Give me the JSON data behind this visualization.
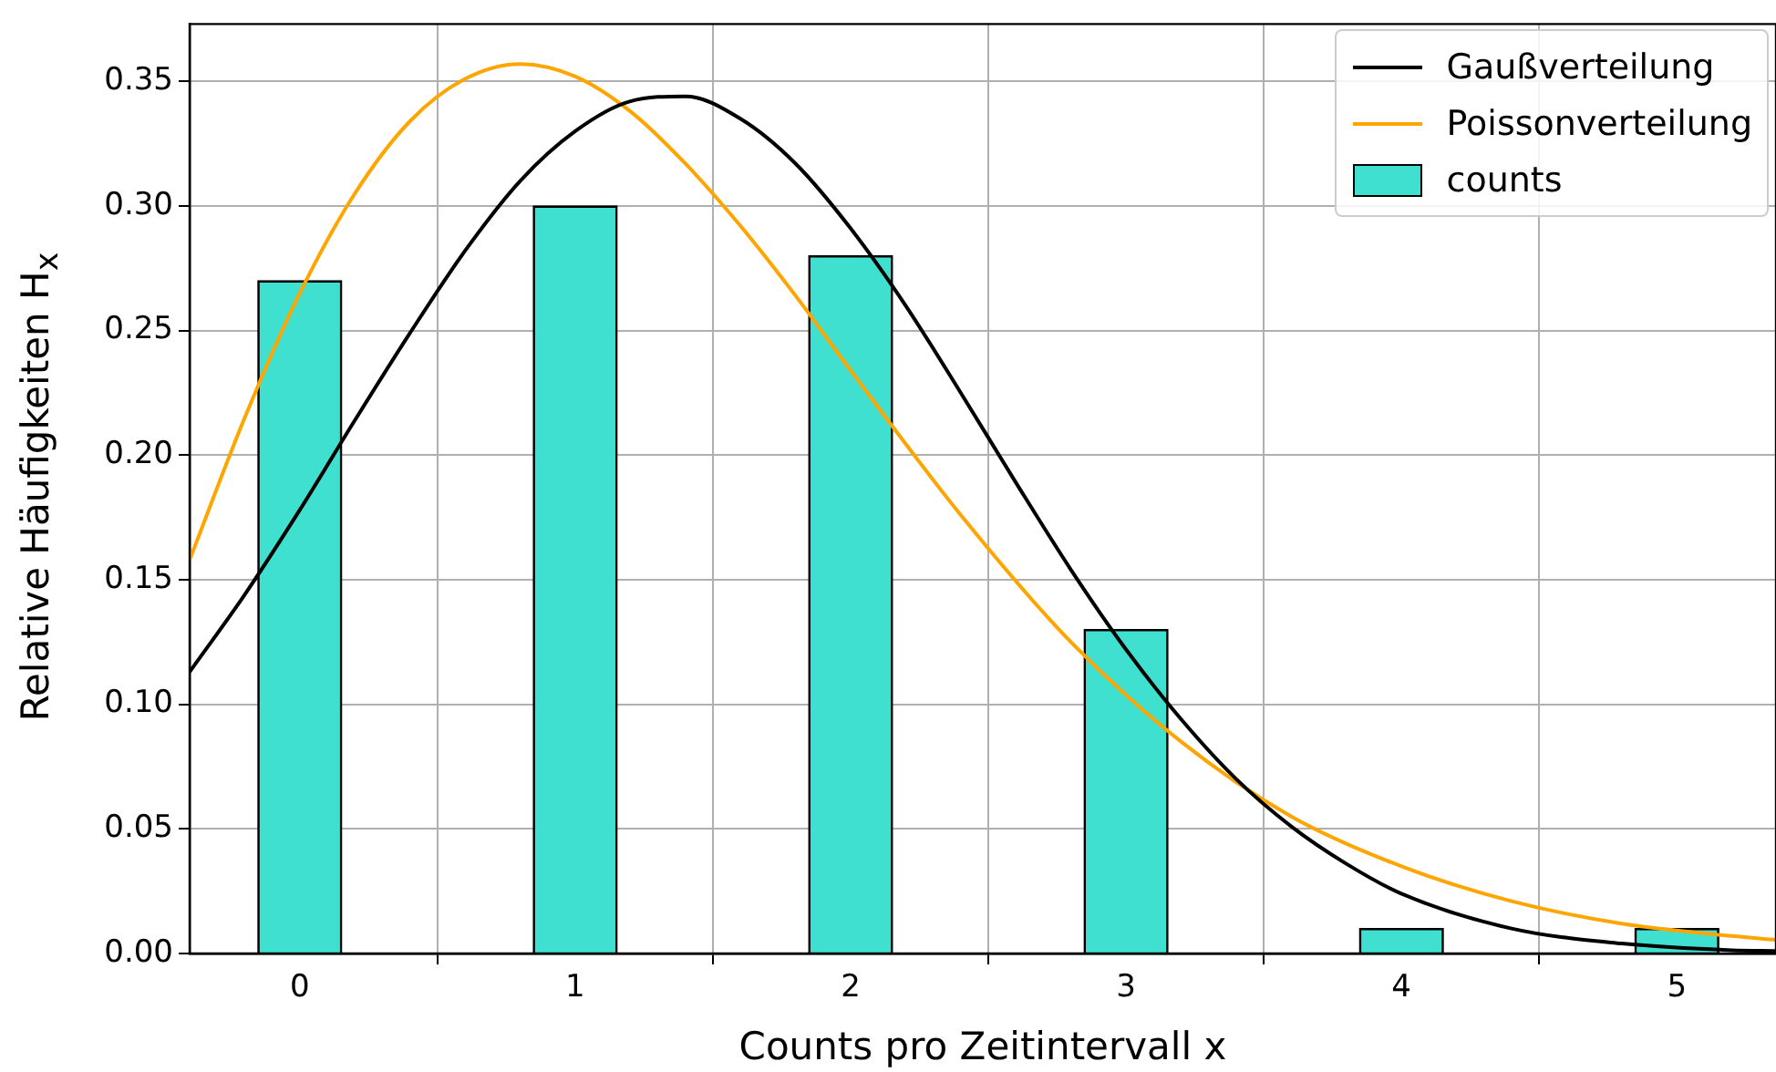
{
  "chart_data": {
    "type": "bar",
    "xlabel": "Counts pro Zeitintervall x",
    "ylabel": "Relative Häufigkeiten H$_{x}$",
    "x": [
      0,
      1,
      2,
      3,
      4,
      5
    ],
    "series": [
      {
        "name": "Gaußverteilung",
        "type": "line",
        "color": "#000000",
        "x": [
          -0.4,
          -0.2,
          0,
          0.2,
          0.4,
          0.6,
          0.8,
          1.0,
          1.2,
          1.4,
          1.6,
          1.8,
          2.0,
          2.2,
          2.4,
          2.6,
          2.8,
          3.0,
          3.2,
          3.4,
          3.6,
          3.8,
          4.0,
          4.4,
          4.8,
          5.2,
          5.36
        ],
        "values": [
          0.113,
          0.144,
          0.178,
          0.214,
          0.249,
          0.282,
          0.31,
          0.33,
          0.342,
          0.344,
          0.335,
          0.317,
          0.291,
          0.26,
          0.225,
          0.189,
          0.154,
          0.122,
          0.094,
          0.07,
          0.051,
          0.036,
          0.024,
          0.01,
          0.004,
          0.0013,
          0.001
        ]
      },
      {
        "name": "Poissonverteilung",
        "type": "line",
        "color": "#ffa500",
        "x": [
          -0.4,
          -0.2,
          0,
          0.2,
          0.4,
          0.6,
          0.8,
          1.0,
          1.2,
          1.4,
          1.6,
          1.8,
          2.0,
          2.4,
          2.8,
          3.2,
          3.6,
          4.0,
          4.4,
          4.8,
          5.2,
          5.36
        ],
        "values": [
          0.158,
          0.215,
          0.265,
          0.305,
          0.334,
          0.351,
          0.357,
          0.352,
          0.338,
          0.317,
          0.292,
          0.264,
          0.234,
          0.176,
          0.125,
          0.085,
          0.055,
          0.035,
          0.021,
          0.012,
          0.007,
          0.0055
        ]
      },
      {
        "name": "counts",
        "color": "#40e0d0",
        "values": [
          0.27,
          0.3,
          0.28,
          0.13,
          0.01,
          0.01
        ]
      }
    ],
    "xlim": [
      -0.4,
      5.36
    ],
    "xticks": [
      0,
      1,
      2,
      3,
      4,
      5
    ],
    "ylim": [
      0,
      0.373
    ],
    "yticks": [
      {
        "value": 0,
        "label": "0.00"
      },
      0.05,
      {
        "value": 0.1,
        "label": "0.10"
      },
      0.15,
      {
        "value": 0.2,
        "label": "0.20"
      },
      0.25,
      {
        "value": 0.3,
        "label": "0.30"
      },
      0.35
    ],
    "grid": true,
    "legend": "top right",
    "marker": "none",
    "line_style": "solid"
  }
}
